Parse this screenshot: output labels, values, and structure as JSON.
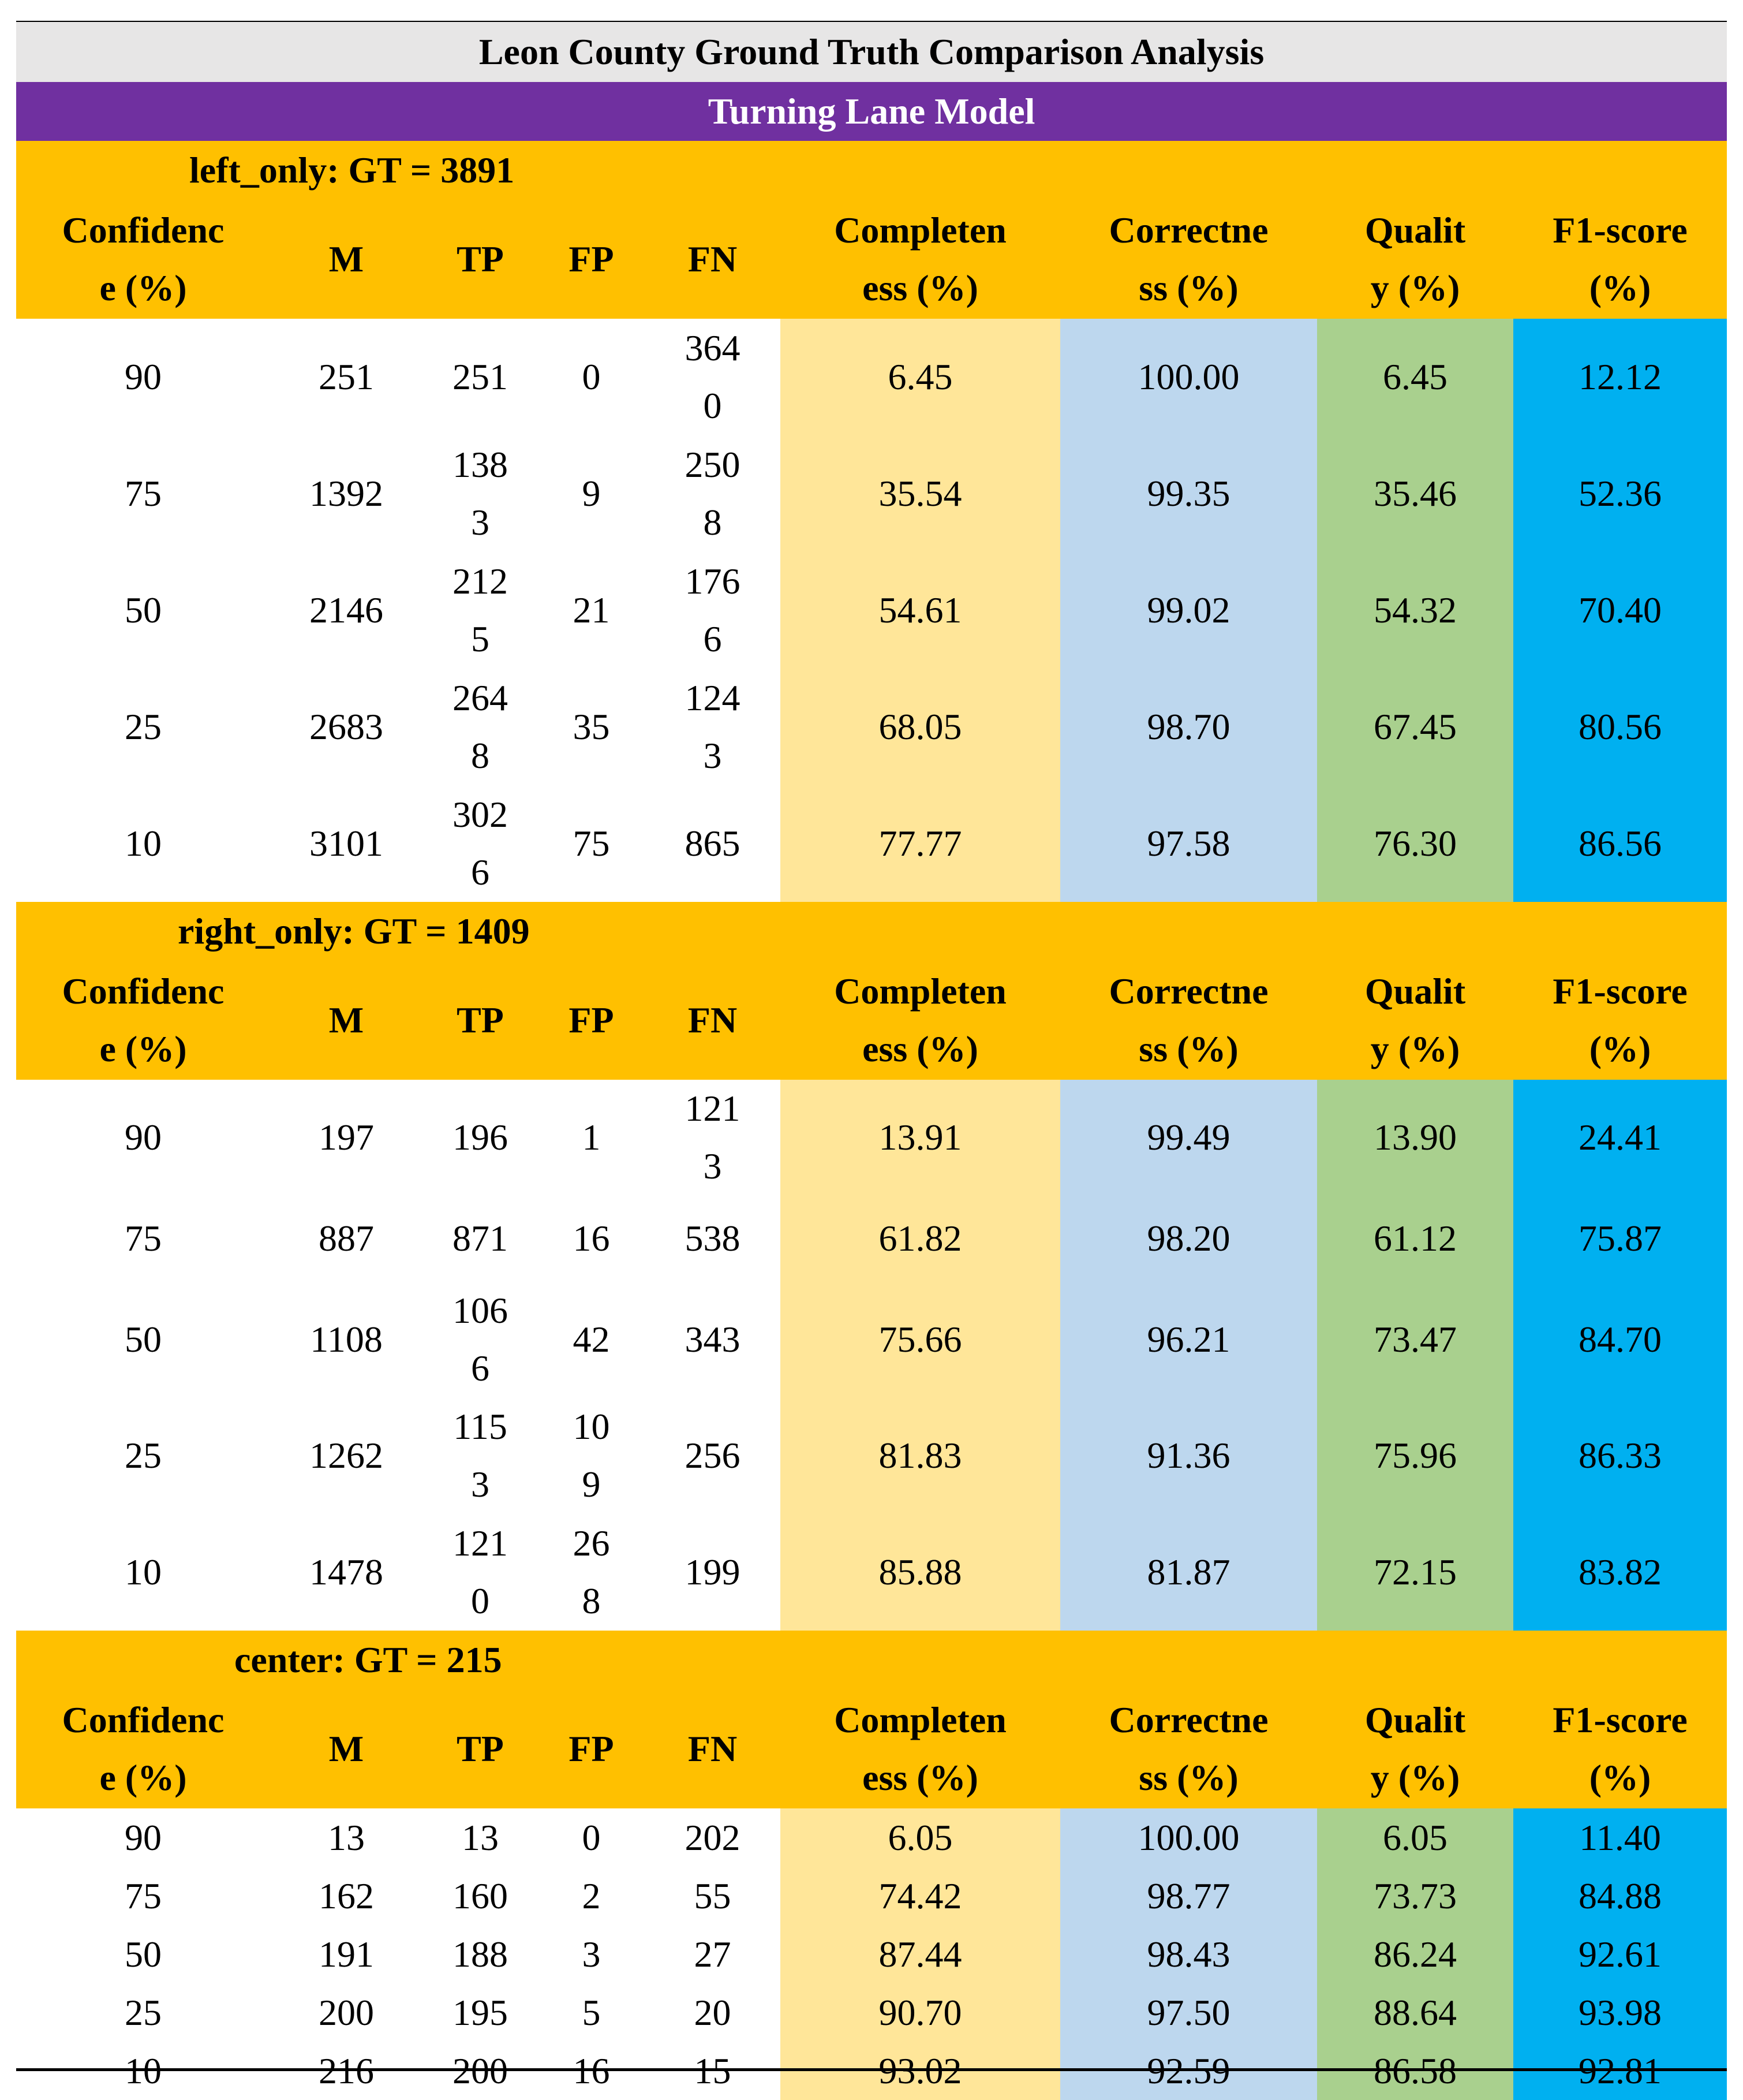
{
  "title": "Leon County Ground Truth Comparison Analysis",
  "subtitle": "Turning Lane Model",
  "headers": {
    "confidence": [
      "Confidenc",
      "e (%)"
    ],
    "m": "M",
    "tp": "TP",
    "fp": "FP",
    "fn": "FN",
    "completeness": [
      "Completen",
      "ess (%)"
    ],
    "correctness": [
      "Correctne",
      "ss (%)"
    ],
    "quality": [
      "Qualit",
      "y (%)"
    ],
    "f1": [
      "F1-score",
      "(%)"
    ]
  },
  "sections": [
    {
      "label": "left_only: GT = 3891",
      "rows": [
        {
          "conf": "90",
          "m": "251",
          "tp": [
            "251"
          ],
          "fp": [
            "0"
          ],
          "fn": [
            "364",
            "0"
          ],
          "comp": "6.45",
          "corr": "100.00",
          "qual": "6.45",
          "f1": "12.12"
        },
        {
          "conf": "75",
          "m": "1392",
          "tp": [
            "138",
            "3"
          ],
          "fp": [
            "9"
          ],
          "fn": [
            "250",
            "8"
          ],
          "comp": "35.54",
          "corr": "99.35",
          "qual": "35.46",
          "f1": "52.36"
        },
        {
          "conf": "50",
          "m": "2146",
          "tp": [
            "212",
            "5"
          ],
          "fp": [
            "21"
          ],
          "fn": [
            "176",
            "6"
          ],
          "comp": "54.61",
          "corr": "99.02",
          "qual": "54.32",
          "f1": "70.40"
        },
        {
          "conf": "25",
          "m": "2683",
          "tp": [
            "264",
            "8"
          ],
          "fp": [
            "35"
          ],
          "fn": [
            "124",
            "3"
          ],
          "comp": "68.05",
          "corr": "98.70",
          "qual": "67.45",
          "f1": "80.56"
        },
        {
          "conf": "10",
          "m": "3101",
          "tp": [
            "302",
            "6"
          ],
          "fp": [
            "75"
          ],
          "fn": [
            "865"
          ],
          "comp": "77.77",
          "corr": "97.58",
          "qual": "76.30",
          "f1": "86.56"
        }
      ]
    },
    {
      "label": "right_only: GT = 1409",
      "rows": [
        {
          "conf": "90",
          "m": "197",
          "tp": [
            "196"
          ],
          "fp": [
            "1"
          ],
          "fn": [
            "121",
            "3"
          ],
          "comp": "13.91",
          "corr": "99.49",
          "qual": "13.90",
          "f1": "24.41"
        },
        {
          "conf": "75",
          "m": "887",
          "tp": [
            "871"
          ],
          "fp": [
            "16"
          ],
          "fn": [
            "538"
          ],
          "comp": "61.82",
          "corr": "98.20",
          "qual": "61.12",
          "f1": "75.87"
        },
        {
          "conf": "50",
          "m": "1108",
          "tp": [
            "106",
            "6"
          ],
          "fp": [
            "42"
          ],
          "fn": [
            "343"
          ],
          "comp": "75.66",
          "corr": "96.21",
          "qual": "73.47",
          "f1": "84.70"
        },
        {
          "conf": "25",
          "m": "1262",
          "tp": [
            "115",
            "3"
          ],
          "fp": [
            "10",
            "9"
          ],
          "fn": [
            "256"
          ],
          "comp": "81.83",
          "corr": "91.36",
          "qual": "75.96",
          "f1": "86.33"
        },
        {
          "conf": "10",
          "m": "1478",
          "tp": [
            "121",
            "0"
          ],
          "fp": [
            "26",
            "8"
          ],
          "fn": [
            "199"
          ],
          "comp": "85.88",
          "corr": "81.87",
          "qual": "72.15",
          "f1": "83.82"
        }
      ]
    },
    {
      "label": "center: GT = 215",
      "rows": [
        {
          "conf": "90",
          "m": "13",
          "tp": [
            "13"
          ],
          "fp": [
            "0"
          ],
          "fn": [
            "202"
          ],
          "comp": "6.05",
          "corr": "100.00",
          "qual": "6.05",
          "f1": "11.40"
        },
        {
          "conf": "75",
          "m": "162",
          "tp": [
            "160"
          ],
          "fp": [
            "2"
          ],
          "fn": [
            "55"
          ],
          "comp": "74.42",
          "corr": "98.77",
          "qual": "73.73",
          "f1": "84.88"
        },
        {
          "conf": "50",
          "m": "191",
          "tp": [
            "188"
          ],
          "fp": [
            "3"
          ],
          "fn": [
            "27"
          ],
          "comp": "87.44",
          "corr": "98.43",
          "qual": "86.24",
          "f1": "92.61"
        },
        {
          "conf": "25",
          "m": "200",
          "tp": [
            "195"
          ],
          "fp": [
            "5"
          ],
          "fn": [
            "20"
          ],
          "comp": "90.70",
          "corr": "97.50",
          "qual": "88.64",
          "f1": "93.98"
        },
        {
          "conf": "10",
          "m": "216",
          "tp": [
            "200"
          ],
          "fp": [
            "16"
          ],
          "fn": [
            "15"
          ],
          "comp": "93.02",
          "corr": "92.59",
          "qual": "86.58",
          "f1": "92.81"
        }
      ]
    }
  ],
  "colors": {
    "title_bg": "#e7e6e6",
    "subtitle_bg": "#7030a0",
    "section_bg": "#ffc000",
    "completeness_bg": "#ffe699",
    "correctness_bg": "#bdd7ee",
    "quality_bg": "#a9d08e",
    "f1_bg": "#00b0f0"
  }
}
